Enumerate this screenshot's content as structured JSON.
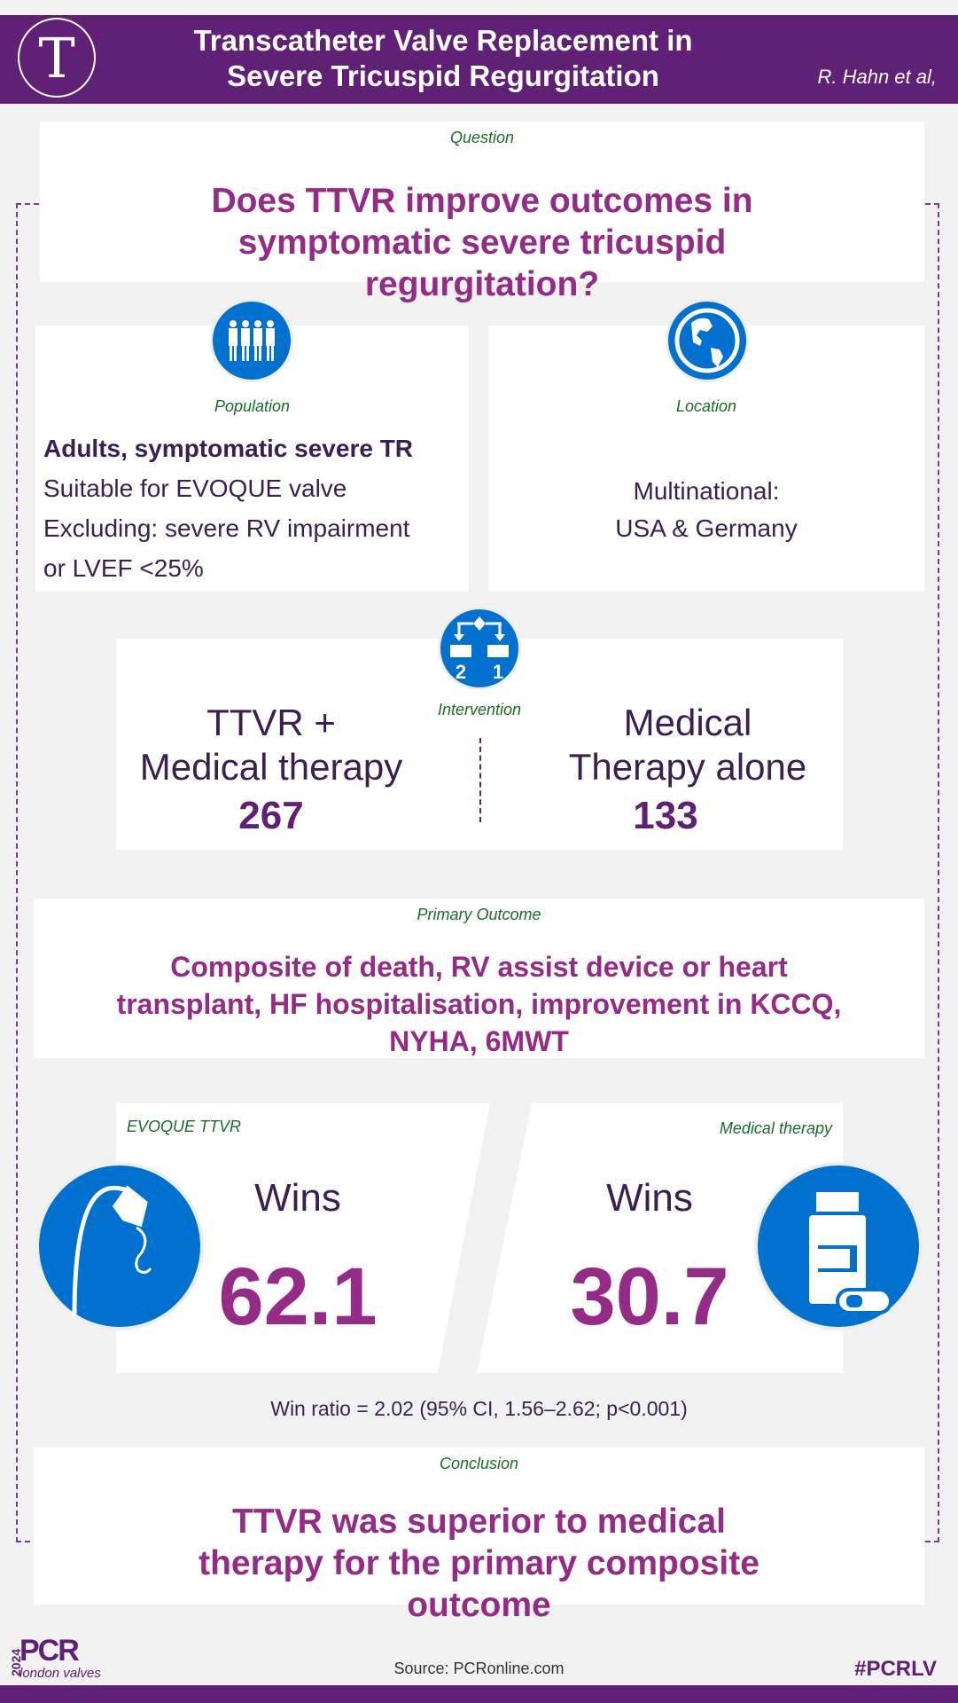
{
  "header": {
    "title_line1": "Transcatheter Valve Replacement in",
    "title_line2": "Severe Tricuspid Regurgitation",
    "authors": "R. Hahn et al,",
    "logo_letter": "T"
  },
  "question": {
    "label": "Question",
    "text": "Does TTVR improve outcomes in symptomatic severe tricuspid regurgitation?"
  },
  "population": {
    "label": "Population",
    "lines": [
      "Adults, symptomatic severe TR",
      "Suitable for EVOQUE valve",
      "Excluding: severe RV impairment",
      "or LVEF <25%"
    ]
  },
  "location": {
    "label": "Location",
    "lines": [
      "Multinational:",
      "USA & Germany"
    ]
  },
  "intervention": {
    "label": "Intervention",
    "icon_numbers": [
      "2",
      "1"
    ],
    "arm1": {
      "line1": "TTVR +",
      "line2": "Medical therapy",
      "n": "267"
    },
    "arm2": {
      "line1": "Medical",
      "line2": "Therapy alone",
      "n": "133"
    }
  },
  "outcome": {
    "label": "Primary Outcome",
    "text": "Composite of death, RV assist device or heart transplant, HF hospitalisation, improvement in KCCQ, NYHA, 6MWT"
  },
  "results": {
    "left": {
      "label": "EVOQUE TTVR",
      "wins": "Wins",
      "value": "62.1"
    },
    "right": {
      "label": "Medical therapy",
      "wins": "Wins",
      "value": "30.7"
    },
    "win_ratio": "Win ratio = 2.02 (95% CI, 1.56–2.62; p<0.001)"
  },
  "conclusion": {
    "label": "Conclusion",
    "text": "TTVR was superior to medical therapy for the primary composite outcome"
  },
  "footer": {
    "logo_year": "2024",
    "logo_main": "PCR",
    "logo_sub": "london valves",
    "source": "Source: PCRonline.com",
    "hashtag": "#PCRLV"
  },
  "colors": {
    "purple": "#5f2075",
    "magenta": "#952a87",
    "blue": "#0071ce",
    "green": "#1a6b2a"
  }
}
